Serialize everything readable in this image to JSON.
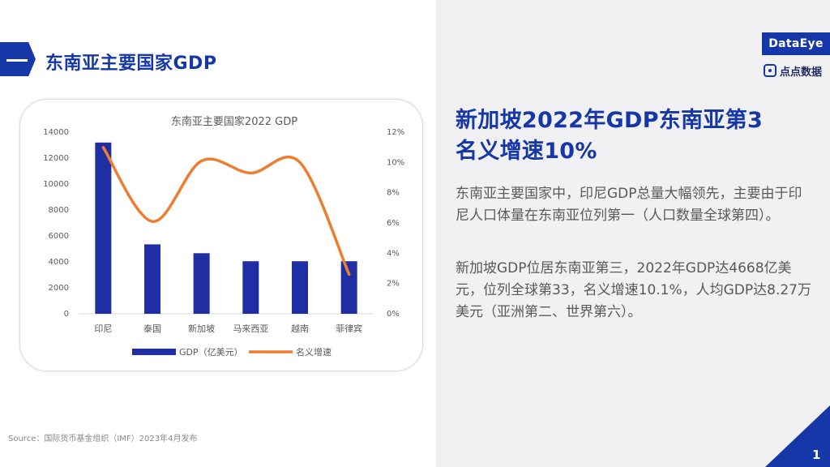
{
  "header": {
    "title": "东南亚主要国家GDP"
  },
  "brand": {
    "logo_main": "DataEye",
    "logo_sub": "点点数据",
    "accent_color": "#1537a8"
  },
  "chart_data": {
    "type": "bar",
    "title": "东南亚主要国家2022 GDP",
    "categories": [
      "印尼",
      "泰国",
      "新加坡",
      "马来西亚",
      "越南",
      "菲律宾"
    ],
    "series": [
      {
        "name": "GDP（亿美元）",
        "type": "bar",
        "axis": "left",
        "color": "#1f2fa3",
        "values": [
          13200,
          5350,
          4668,
          4050,
          4050,
          4050
        ]
      },
      {
        "name": "名义增速",
        "type": "line",
        "axis": "right",
        "color": "#ed7d31",
        "values": [
          11.0,
          6.1,
          10.1,
          9.3,
          10.0,
          2.6
        ]
      }
    ],
    "ylim": [
      0,
      14000
    ],
    "y_ticks": [
      "0",
      "2000",
      "4000",
      "6000",
      "8000",
      "10000",
      "12000",
      "14000"
    ],
    "y2lim": [
      0,
      12
    ],
    "y2_ticks": [
      "0%",
      "2%",
      "4%",
      "6%",
      "8%",
      "10%",
      "12%"
    ],
    "legend_position": "bottom",
    "grid": false
  },
  "main": {
    "headline_line1": "新加坡2022年GDP东南亚第3",
    "headline_line2": "名义增速10%",
    "para1": "东南亚主要国家中，印尼GDP总量大幅领先，主要由于印尼人口体量在东南亚位列第一（人口数量全球第四）。",
    "para2": "新加坡GDP位居东南亚第三，2022年GDP达4668亿美元，位列全球第33，名义增速10.1%，人均GDP达8.27万美元（亚洲第二、世界第六）。"
  },
  "footer": {
    "source": "Source：国际货币基金组织（IMF）2023年4月发布",
    "page_number": "1"
  }
}
